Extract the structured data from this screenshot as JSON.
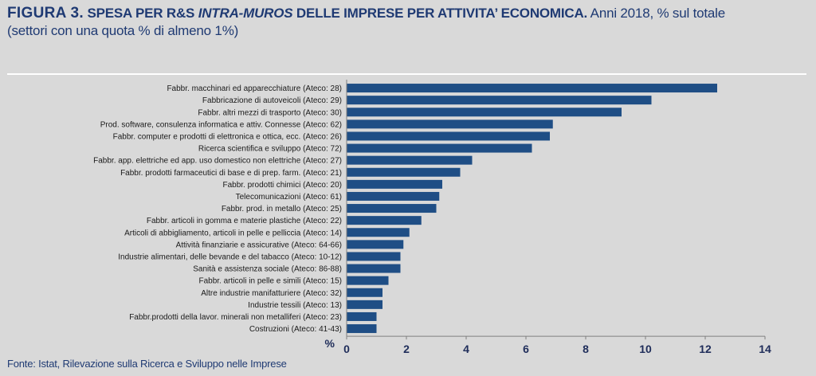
{
  "title": {
    "figura": "FIGURA 3.",
    "main_before": "SPESA PER R&S ",
    "main_italic": "INTRA-MUROS",
    "main_after": " DELLE IMPRESE PER ATTIVITA’ ECONOMICA.",
    "rest": " Anni 2018, % sul totale",
    "line2": "(settori con una quota % di almeno 1%)"
  },
  "source": "Fonte: Istat, Rilevazione sulla Ricerca e Sviluppo nelle Imprese",
  "colors": {
    "bar": "#1f4e85",
    "background": "#d9d9d9",
    "axis": "#808080"
  },
  "chart_data": {
    "type": "bar",
    "orientation": "horizontal",
    "categories": [
      "Fabbr. macchinari ed apparecchiature (Ateco: 28)",
      "Fabbricazione di autoveicoli (Ateco: 29)",
      "Fabbr. altri mezzi di trasporto (Ateco: 30)",
      "Prod. software, consulenza informatica e attiv. Connesse (Ateco: 62)",
      "Fabbr. computer e prodotti di elettronica e ottica, ecc. (Ateco: 26)",
      "Ricerca scientifica e sviluppo (Ateco: 72)",
      "Fabbr. app. elettriche ed app. uso domestico non elettriche (Ateco: 27)",
      "Fabbr. prodotti farmaceutici di base e di prep. farm. (Ateco: 21)",
      "Fabbr. prodotti chimici (Ateco: 20)",
      "Telecomunicazioni (Ateco: 61)",
      "Fabbr. prod. in metallo (Ateco: 25)",
      "Fabbr. articoli in gomma e materie plastiche (Ateco: 22)",
      "Articoli di abbigliamento, articoli in pelle e pelliccia (Ateco: 14)",
      "Attività finanziarie e assicurative (Ateco: 64-66)",
      "Industrie alimentari, delle bevande e del tabacco (Ateco: 10-12)",
      "Sanità e assistenza sociale (Ateco: 86-88)",
      "Fabbr. articoli in pelle e simili (Ateco: 15)",
      "Altre industrie manifatturiere (Ateco: 32)",
      "Industrie tessili (Ateco: 13)",
      "Fabbr.prodotti della lavor. minerali non metalliferi (Ateco: 23)",
      "Costruzioni (Ateco: 41-43)"
    ],
    "values": [
      12.4,
      10.2,
      9.2,
      6.9,
      6.8,
      6.2,
      4.2,
      3.8,
      3.2,
      3.1,
      3.0,
      2.5,
      2.1,
      1.9,
      1.8,
      1.8,
      1.4,
      1.2,
      1.2,
      1.0,
      1.0
    ],
    "xlabel": "%",
    "xlim": [
      0,
      14
    ],
    "xticks": [
      0,
      2,
      4,
      6,
      8,
      10,
      12,
      14
    ],
    "grid": false,
    "legend": "none"
  }
}
